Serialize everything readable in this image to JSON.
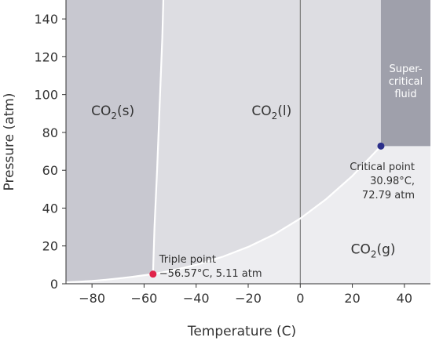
{
  "chart_data": {
    "type": "phase-diagram",
    "xlabel": "Temperature (C)",
    "ylabel": "Pressure (atm)",
    "xlim": [
      -90,
      50
    ],
    "ylim": [
      0,
      150
    ],
    "xticks": [
      -80,
      -60,
      -40,
      -20,
      0,
      20,
      40
    ],
    "xtick_labels": [
      "−80",
      "−60",
      "−40",
      "−20",
      "0",
      "20",
      "40"
    ],
    "yticks": [
      0,
      20,
      40,
      60,
      80,
      100,
      120,
      140
    ],
    "ytick_labels": [
      "0",
      "20",
      "40",
      "60",
      "80",
      "100",
      "120",
      "140"
    ],
    "grid": false,
    "regions": [
      {
        "name": "CO2(s)",
        "label_main": "CO",
        "label_sub": "2",
        "label_rest": "(s)",
        "color": "#c8c8d0",
        "label_x": -72,
        "label_y": 89
      },
      {
        "name": "CO2(l)",
        "label_main": "CO",
        "label_sub": "2",
        "label_rest": "(l)",
        "color": "#dddde2",
        "label_x": -11,
        "label_y": 89
      },
      {
        "name": "CO2(g)",
        "label_main": "CO",
        "label_sub": "2",
        "label_rest": "(g)",
        "color": "#ededf0",
        "label_x": 28,
        "label_y": 16
      }
    ],
    "supercritical": {
      "label_lines": [
        "Super-",
        "critical",
        "fluid"
      ],
      "color": "#9fa0ab",
      "x_min": 30.98,
      "y_min": 72.79
    },
    "solid_gas_boundary": {
      "x": [
        -90,
        -85,
        -80,
        -75,
        -70,
        -65,
        -60,
        -56.57
      ],
      "y": [
        0.8,
        1.1,
        1.5,
        2.1,
        2.8,
        3.6,
        4.5,
        5.11
      ]
    },
    "solid_liquid_boundary": {
      "x": [
        -56.57,
        -56,
        -55,
        -54,
        -53,
        -52.6
      ],
      "y": [
        5.11,
        30,
        60,
        95,
        130,
        150
      ]
    },
    "liquid_gas_boundary": {
      "x": [
        -56.57,
        -50,
        -40,
        -30,
        -20,
        -10,
        0,
        10,
        20,
        30.98
      ],
      "y": [
        5.11,
        6.8,
        10.0,
        14.2,
        19.5,
        26.1,
        34.5,
        44.8,
        57.0,
        72.79
      ]
    },
    "vertical_line_x": 0,
    "points": [
      {
        "name": "Triple point",
        "x": -56.57,
        "y": 5.11,
        "color": "#e0234a",
        "label_lines": [
          "Triple point",
          "−56.57°C, 5.11 atm"
        ]
      },
      {
        "name": "Critical point",
        "x": 30.98,
        "y": 72.79,
        "color": "#2b2f8a",
        "label_lines": [
          "Critical point",
          "30.98°C,",
          "72.79 atm"
        ]
      }
    ]
  }
}
